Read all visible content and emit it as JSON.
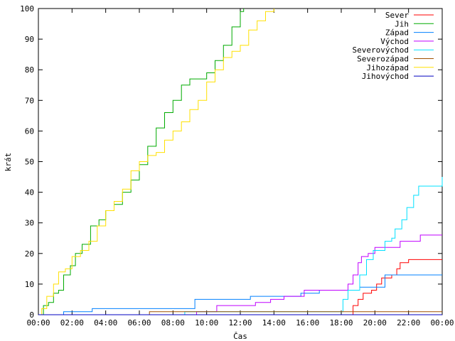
{
  "chart_data": {
    "type": "line",
    "xlabel": "Čas",
    "ylabel": "krát",
    "x_ticks": [
      "00:00",
      "02:00",
      "04:00",
      "06:00",
      "08:00",
      "10:00",
      "12:00",
      "14:00",
      "16:00",
      "18:00",
      "20:00",
      "22:00",
      "00:00"
    ],
    "x_range_hours": [
      0,
      24
    ],
    "ylim": [
      0,
      100
    ],
    "y_ticks": [
      0,
      10,
      20,
      30,
      40,
      50,
      60,
      70,
      80,
      90,
      100
    ],
    "grid": false,
    "legend_position": "top-right",
    "series": [
      {
        "name": "Sever",
        "color": "#ff0000",
        "points": [
          [
            0,
            0
          ],
          [
            18.6,
            0
          ],
          [
            18.7,
            3
          ],
          [
            19.0,
            5
          ],
          [
            19.3,
            7
          ],
          [
            19.8,
            8
          ],
          [
            20.1,
            10
          ],
          [
            20.4,
            12
          ],
          [
            21.0,
            13
          ],
          [
            21.3,
            15
          ],
          [
            21.5,
            17
          ],
          [
            22.0,
            18
          ],
          [
            24.0,
            18
          ]
        ]
      },
      {
        "name": "Jih",
        "color": "#00aa00",
        "points": [
          [
            0,
            0
          ],
          [
            0.3,
            3
          ],
          [
            0.6,
            4
          ],
          [
            0.9,
            7
          ],
          [
            1.2,
            8
          ],
          [
            1.5,
            13
          ],
          [
            1.9,
            16
          ],
          [
            2.2,
            20
          ],
          [
            2.6,
            23
          ],
          [
            3.1,
            29
          ],
          [
            3.6,
            31
          ],
          [
            4.0,
            34
          ],
          [
            4.5,
            36
          ],
          [
            5.0,
            40
          ],
          [
            5.5,
            44
          ],
          [
            6.0,
            49
          ],
          [
            6.5,
            55
          ],
          [
            7.0,
            61
          ],
          [
            7.5,
            66
          ],
          [
            8.0,
            70
          ],
          [
            8.5,
            75
          ],
          [
            9.0,
            77
          ],
          [
            9.5,
            77
          ],
          [
            10.0,
            79
          ],
          [
            10.5,
            83
          ],
          [
            11.0,
            88
          ],
          [
            11.5,
            94
          ],
          [
            12.0,
            99
          ],
          [
            12.2,
            100
          ]
        ]
      },
      {
        "name": "Západ",
        "color": "#0080ff",
        "points": [
          [
            0,
            0
          ],
          [
            1.5,
            1
          ],
          [
            3.2,
            2
          ],
          [
            9.2,
            2
          ],
          [
            9.3,
            5
          ],
          [
            12.5,
            5
          ],
          [
            12.6,
            6
          ],
          [
            15.5,
            6
          ],
          [
            15.6,
            7
          ],
          [
            16.6,
            7
          ],
          [
            16.7,
            8
          ],
          [
            19.0,
            8
          ],
          [
            19.1,
            9
          ],
          [
            20.5,
            9
          ],
          [
            20.6,
            13
          ],
          [
            24.0,
            13
          ]
        ]
      },
      {
        "name": "Východ",
        "color": "#c000ff",
        "points": [
          [
            0,
            0
          ],
          [
            9.3,
            0
          ],
          [
            9.4,
            1
          ],
          [
            10.6,
            3
          ],
          [
            12.9,
            4
          ],
          [
            13.8,
            5
          ],
          [
            14.6,
            6
          ],
          [
            15.8,
            8
          ],
          [
            17.8,
            8
          ],
          [
            18.4,
            10
          ],
          [
            18.7,
            13
          ],
          [
            19.0,
            17
          ],
          [
            19.2,
            19
          ],
          [
            19.6,
            20
          ],
          [
            20.0,
            22
          ],
          [
            21.2,
            22
          ],
          [
            21.5,
            24
          ],
          [
            22.7,
            26
          ],
          [
            24.0,
            26
          ]
        ]
      },
      {
        "name": "Severovýchod",
        "color": "#00e0ff",
        "points": [
          [
            0,
            0
          ],
          [
            8.6,
            0
          ],
          [
            8.7,
            1
          ],
          [
            17.8,
            1
          ],
          [
            18.1,
            5
          ],
          [
            18.4,
            8
          ],
          [
            19.1,
            13
          ],
          [
            19.5,
            18
          ],
          [
            19.9,
            21
          ],
          [
            20.6,
            24
          ],
          [
            21.0,
            25
          ],
          [
            21.2,
            28
          ],
          [
            21.6,
            31
          ],
          [
            21.9,
            35
          ],
          [
            22.3,
            39
          ],
          [
            22.6,
            42
          ],
          [
            23.7,
            42
          ],
          [
            24.0,
            45
          ]
        ]
      },
      {
        "name": "Severozápad",
        "color": "#a05000",
        "points": [
          [
            0,
            0
          ],
          [
            6.5,
            0
          ],
          [
            6.6,
            1
          ],
          [
            24.0,
            1
          ]
        ]
      },
      {
        "name": "Jihozápad",
        "color": "#ffe000",
        "points": [
          [
            0,
            0
          ],
          [
            0.2,
            2
          ],
          [
            0.5,
            6
          ],
          [
            0.9,
            10
          ],
          [
            1.2,
            14
          ],
          [
            1.6,
            15
          ],
          [
            2.0,
            19
          ],
          [
            2.5,
            21
          ],
          [
            3.0,
            24
          ],
          [
            3.5,
            29
          ],
          [
            4.0,
            34
          ],
          [
            4.5,
            37
          ],
          [
            5.0,
            41
          ],
          [
            5.5,
            47
          ],
          [
            6.0,
            50
          ],
          [
            6.5,
            52
          ],
          [
            7.0,
            53
          ],
          [
            7.5,
            57
          ],
          [
            8.0,
            60
          ],
          [
            8.5,
            63
          ],
          [
            9.0,
            67
          ],
          [
            9.5,
            70
          ],
          [
            10.0,
            76
          ],
          [
            10.5,
            80
          ],
          [
            11.0,
            84
          ],
          [
            11.5,
            86
          ],
          [
            12.0,
            88
          ],
          [
            12.5,
            93
          ],
          [
            13.0,
            96
          ],
          [
            13.5,
            99
          ],
          [
            14.0,
            100
          ]
        ]
      },
      {
        "name": "Jihovýchod",
        "color": "#0000c0",
        "points": [
          [
            0,
            0
          ],
          [
            24.0,
            0
          ]
        ]
      }
    ]
  }
}
